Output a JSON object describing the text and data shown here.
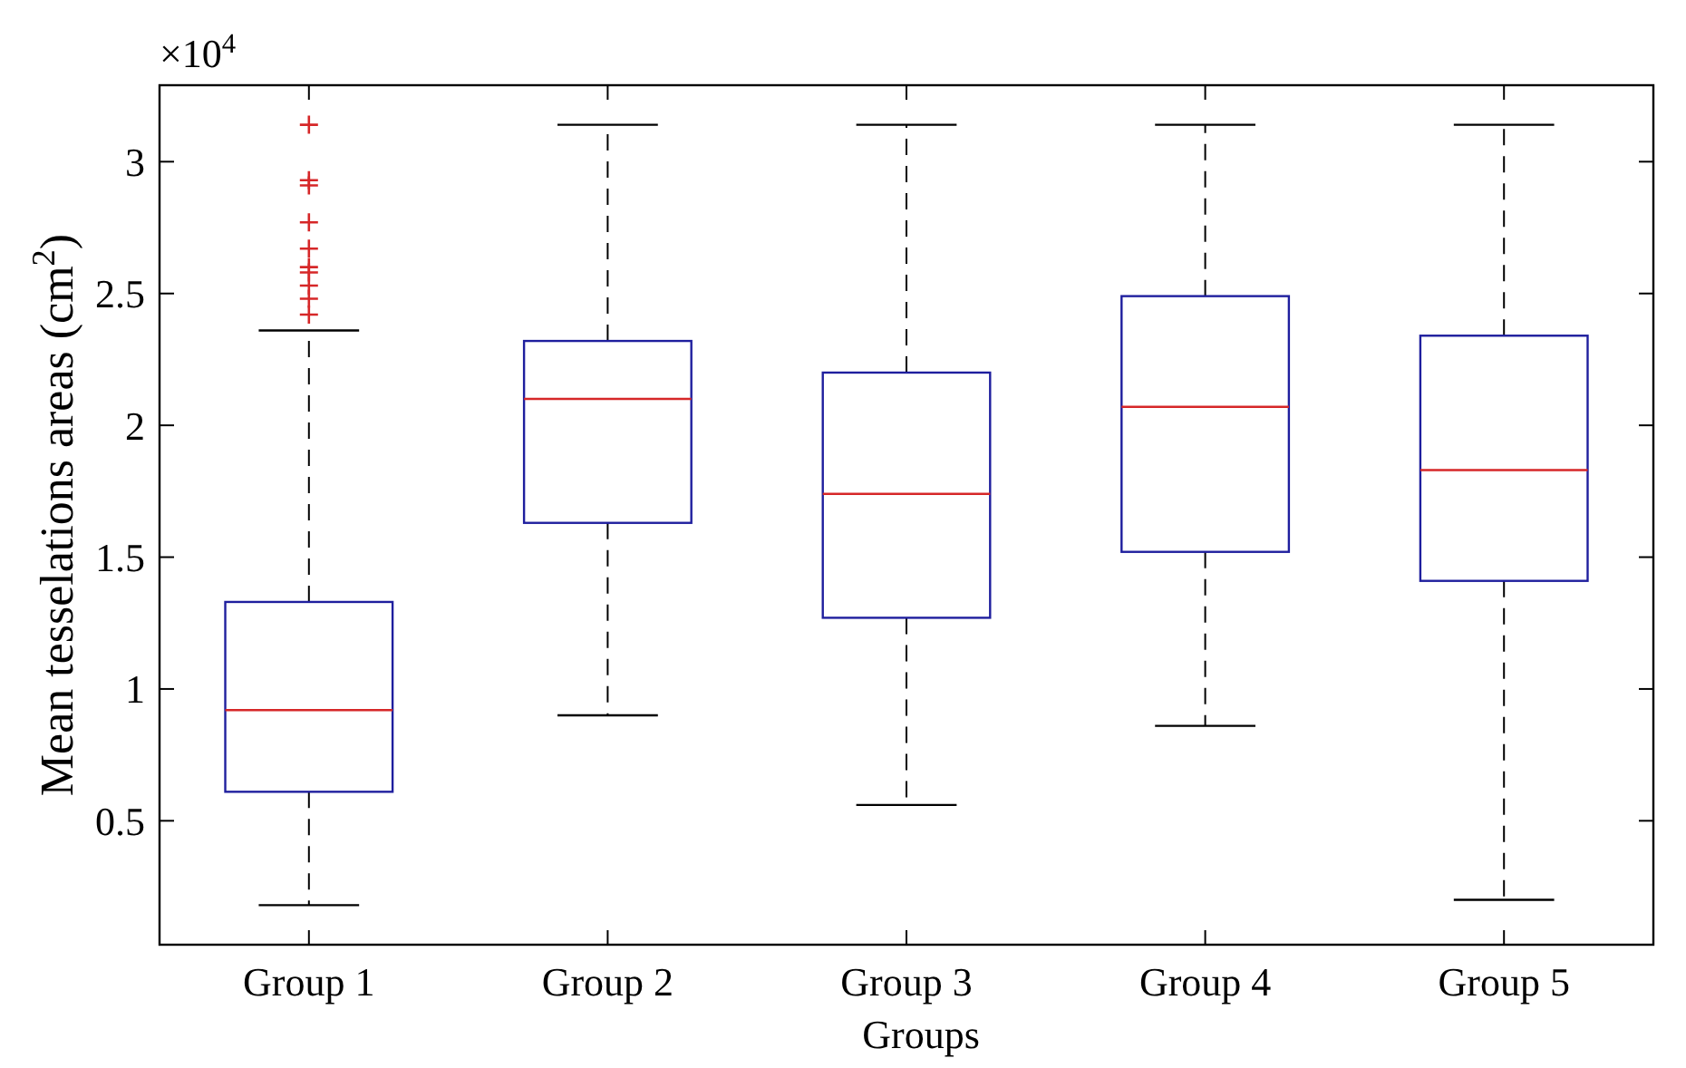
{
  "chart_data": {
    "type": "box",
    "xlabel": "Groups",
    "ylabel": "Mean tesselations areas (cm$^{2}$)",
    "annotations": [
      "×10$^{4}$"
    ],
    "categories": [
      "Group 1",
      "Group 2",
      "Group 3",
      "Group 4",
      "Group 5"
    ],
    "ylim": [
      0.03,
      3.29
    ],
    "yticks": [
      0.5,
      1,
      1.5,
      2,
      2.5,
      3
    ],
    "grid": false,
    "color": "#1f1f9e",
    "marker": "cross",
    "boxes": [
      {
        "low": 0.18,
        "q1": 0.61,
        "median": 0.92,
        "q3": 1.33,
        "high": 2.36,
        "outliers": [
          3.14,
          2.93,
          2.91,
          2.77,
          2.67,
          2.6,
          2.58,
          2.53,
          2.48,
          2.42
        ]
      },
      {
        "low": 0.9,
        "q1": 1.63,
        "median": 2.1,
        "q3": 2.32,
        "high": 3.14
      },
      {
        "low": 0.56,
        "q1": 1.27,
        "median": 1.74,
        "q3": 2.2,
        "high": 3.14
      },
      {
        "low": 0.86,
        "q1": 1.52,
        "median": 2.07,
        "q3": 2.49,
        "high": 3.14
      },
      {
        "low": 0.2,
        "q1": 1.41,
        "median": 1.83,
        "q3": 2.34,
        "high": 3.14
      }
    ]
  }
}
